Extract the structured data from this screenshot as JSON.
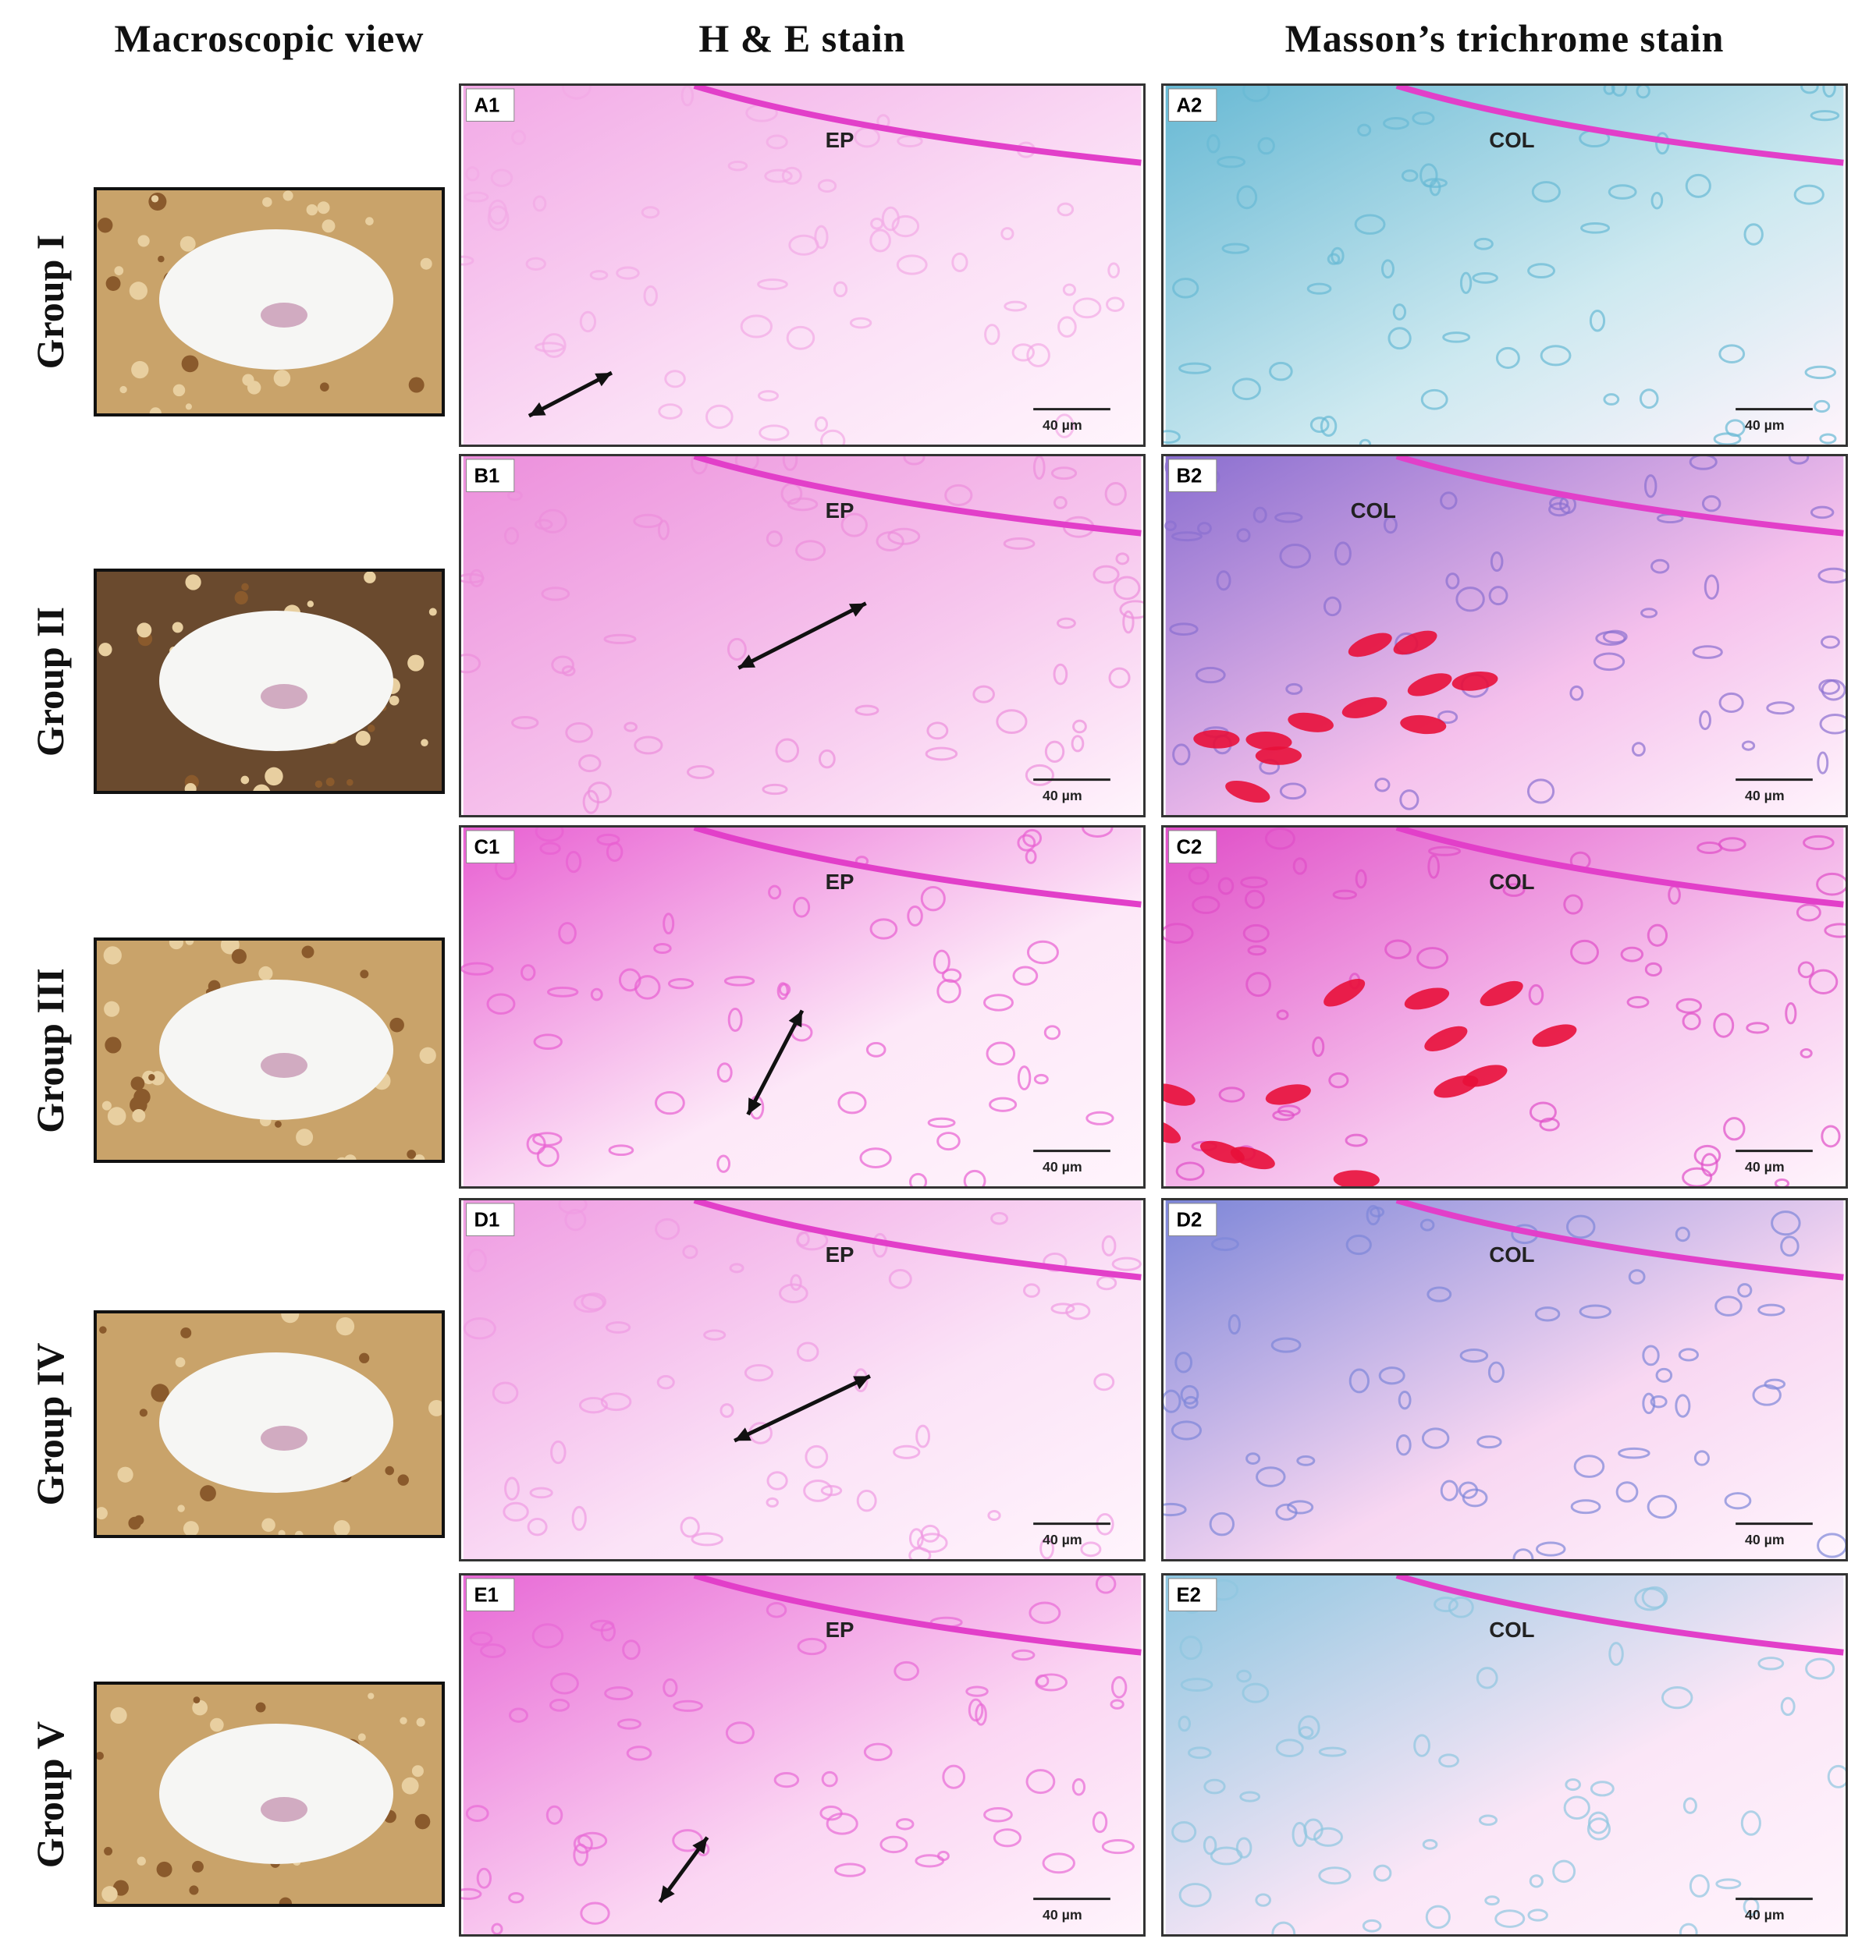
{
  "header": {
    "columns": [
      "Macroscopic view",
      "H & E stain",
      "Masson’s trichrome stain"
    ]
  },
  "rows": [
    {
      "group": "Group I",
      "he_panel": "A1",
      "he_label": "EP",
      "he_scale": "40 µm",
      "mt_panel": "A2",
      "mt_label": "COL",
      "mt_scale": "40 µm"
    },
    {
      "group": "Group II",
      "he_panel": "B1",
      "he_label": "EP",
      "he_scale": "40 µm",
      "mt_panel": "B2",
      "mt_label": "COL",
      "mt_scale": "40 µm"
    },
    {
      "group": "Group III",
      "he_panel": "C1",
      "he_label": "EP",
      "he_scale": "40 µm",
      "mt_panel": "C2",
      "mt_label": "COL",
      "mt_scale": "40 µm"
    },
    {
      "group": "Group IV",
      "he_panel": "D1",
      "he_label": "EP",
      "he_scale": "40 µm",
      "mt_panel": "D2",
      "mt_label": "COL",
      "mt_scale": "40 µm"
    },
    {
      "group": "Group V",
      "he_panel": "E1",
      "he_label": "EP",
      "he_scale": "40 µm",
      "mt_panel": "E2",
      "mt_label": "COL",
      "mt_scale": "40 µm"
    }
  ]
}
